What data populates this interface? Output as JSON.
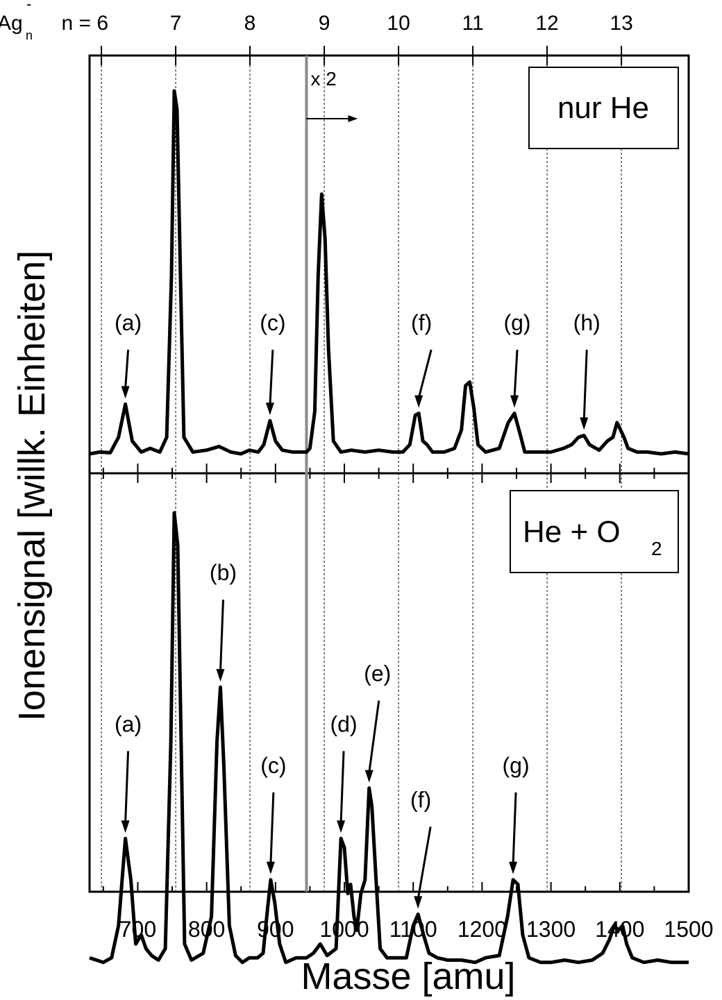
{
  "chart_data": {
    "type": "line",
    "xlabel": "Masse [amu]",
    "ylabel": "Ionensignal [willk. Einheiten]",
    "xlim": [
      630,
      1500
    ],
    "x_ticks": [
      "700",
      "800",
      "900",
      "1000",
      "1100",
      "1200",
      "1300",
      "1400",
      "1500"
    ],
    "y_ticks": [],
    "grid": false,
    "top_axis": {
      "prefix": "Ag",
      "prefix_subscript": "n",
      "prefix_superscript": "-",
      "label": "n = 6",
      "n_values": [
        6,
        7,
        8,
        9,
        10,
        11,
        12,
        13
      ],
      "n_labels": [
        "7",
        "8",
        "9",
        "10",
        "11",
        "12",
        "13"
      ],
      "masses": [
        647.2,
        755.1,
        862.9,
        970.8,
        1078.7,
        1186.6,
        1294.4,
        1402.3
      ]
    },
    "scale_change": {
      "x": 945,
      "label": "x 2",
      "direction": "right"
    },
    "panels": [
      {
        "id": "top",
        "legend": "nur He",
        "legend_subscript": "",
        "series": [
          {
            "points": [
              [
                630,
                0.015
              ],
              [
                645,
                0.02
              ],
              [
                660,
                0.018
              ],
              [
                672,
                0.06
              ],
              [
                682,
                0.15
              ],
              [
                692,
                0.05
              ],
              [
                705,
                0.02
              ],
              [
                718,
                0.03
              ],
              [
                732,
                0.02
              ],
              [
                742,
                0.06
              ],
              [
                749,
                0.5
              ],
              [
                753,
                1.0
              ],
              [
                757,
                0.95
              ],
              [
                762,
                0.5
              ],
              [
                767,
                0.06
              ],
              [
                780,
                0.02
              ],
              [
                800,
                0.025
              ],
              [
                818,
                0.035
              ],
              [
                835,
                0.02
              ],
              [
                850,
                0.015
              ],
              [
                862,
                0.025
              ],
              [
                875,
                0.02
              ],
              [
                883,
                0.04
              ],
              [
                892,
                0.105
              ],
              [
                900,
                0.05
              ],
              [
                910,
                0.025
              ],
              [
                925,
                0.02
              ],
              [
                945,
                0.02
              ],
              [
                950,
                0.03
              ],
              [
                957,
                0.13
              ],
              [
                962,
                0.5
              ],
              [
                967,
                0.72
              ],
              [
                972,
                0.6
              ],
              [
                977,
                0.3
              ],
              [
                984,
                0.05
              ],
              [
                995,
                0.02
              ],
              [
                1010,
                0.025
              ],
              [
                1030,
                0.02
              ],
              [
                1050,
                0.025
              ],
              [
                1070,
                0.02
              ],
              [
                1085,
                0.02
              ],
              [
                1095,
                0.04
              ],
              [
                1103,
                0.12
              ],
              [
                1108,
                0.125
              ],
              [
                1114,
                0.05
              ],
              [
                1120,
                0.04
              ],
              [
                1128,
                0.02
              ],
              [
                1145,
                0.02
              ],
              [
                1160,
                0.03
              ],
              [
                1170,
                0.08
              ],
              [
                1176,
                0.2
              ],
              [
                1182,
                0.21
              ],
              [
                1188,
                0.14
              ],
              [
                1194,
                0.04
              ],
              [
                1205,
                0.02
              ],
              [
                1225,
                0.03
              ],
              [
                1238,
                0.1
              ],
              [
                1247,
                0.125
              ],
              [
                1255,
                0.07
              ],
              [
                1262,
                0.02
              ],
              [
                1280,
                0.02
              ],
              [
                1300,
                0.02
              ],
              [
                1318,
                0.03
              ],
              [
                1330,
                0.04
              ],
              [
                1340,
                0.06
              ],
              [
                1348,
                0.065
              ],
              [
                1356,
                0.04
              ],
              [
                1370,
                0.025
              ],
              [
                1382,
                0.05
              ],
              [
                1390,
                0.06
              ],
              [
                1396,
                0.1
              ],
              [
                1401,
                0.08
              ],
              [
                1406,
                0.06
              ],
              [
                1412,
                0.03
              ],
              [
                1425,
                0.02
              ],
              [
                1440,
                0.02
              ],
              [
                1460,
                0.015
              ],
              [
                1480,
                0.02
              ],
              [
                1500,
                0.015
              ]
            ]
          }
        ],
        "annotations": [
          {
            "label": "(a)",
            "x": 682,
            "y": 0.15
          },
          {
            "label": "(c)",
            "x": 892,
            "y": 0.105
          },
          {
            "label": "(f)",
            "x": 1108,
            "y": 0.125
          },
          {
            "label": "(g)",
            "x": 1247,
            "y": 0.125
          },
          {
            "label": "(h)",
            "x": 1348,
            "y": 0.065
          }
        ]
      },
      {
        "id": "bottom",
        "legend": "He + O",
        "legend_subscript": "2",
        "series": [
          {
            "points": [
              [
                630,
                0.03
              ],
              [
                650,
                0.02
              ],
              [
                662,
                0.03
              ],
              [
                672,
                0.1
              ],
              [
                682,
                0.29
              ],
              [
                690,
                0.2
              ],
              [
                697,
                0.06
              ],
              [
                705,
                0.08
              ],
              [
                712,
                0.05
              ],
              [
                720,
                0.035
              ],
              [
                730,
                0.025
              ],
              [
                740,
                0.05
              ],
              [
                748,
                0.5
              ],
              [
                753,
                1.0
              ],
              [
                758,
                0.93
              ],
              [
                763,
                0.5
              ],
              [
                768,
                0.06
              ],
              [
                778,
                0.025
              ],
              [
                795,
                0.04
              ],
              [
                807,
                0.12
              ],
              [
                815,
                0.5
              ],
              [
                820,
                0.62
              ],
              [
                825,
                0.45
              ],
              [
                833,
                0.1
              ],
              [
                842,
                0.035
              ],
              [
                852,
                0.02
              ],
              [
                862,
                0.03
              ],
              [
                874,
                0.03
              ],
              [
                882,
                0.04
              ],
              [
                888,
                0.13
              ],
              [
                893,
                0.2
              ],
              [
                899,
                0.15
              ],
              [
                906,
                0.06
              ],
              [
                915,
                0.02
              ],
              [
                930,
                0.03
              ],
              [
                945,
                0.03
              ],
              [
                955,
                0.04
              ],
              [
                965,
                0.06
              ],
              [
                975,
                0.035
              ],
              [
                988,
                0.05
              ],
              [
                995,
                0.29
              ],
              [
                1000,
                0.27
              ],
              [
                1005,
                0.17
              ],
              [
                1009,
                0.19
              ],
              [
                1014,
                0.12
              ],
              [
                1018,
                0.09
              ],
              [
                1024,
                0.17
              ],
              [
                1030,
                0.2
              ],
              [
                1036,
                0.4
              ],
              [
                1040,
                0.36
              ],
              [
                1046,
                0.2
              ],
              [
                1052,
                0.05
              ],
              [
                1062,
                0.03
              ],
              [
                1075,
                0.03
              ],
              [
                1090,
                0.03
              ],
              [
                1100,
                0.1
              ],
              [
                1107,
                0.125
              ],
              [
                1115,
                0.08
              ],
              [
                1123,
                0.04
              ],
              [
                1135,
                0.03
              ],
              [
                1150,
                0.025
              ],
              [
                1170,
                0.025
              ],
              [
                1190,
                0.02
              ],
              [
                1205,
                0.03
              ],
              [
                1225,
                0.035
              ],
              [
                1237,
                0.12
              ],
              [
                1245,
                0.2
              ],
              [
                1252,
                0.19
              ],
              [
                1259,
                0.08
              ],
              [
                1268,
                0.03
              ],
              [
                1285,
                0.02
              ],
              [
                1300,
                0.02
              ],
              [
                1320,
                0.025
              ],
              [
                1340,
                0.02
              ],
              [
                1360,
                0.025
              ],
              [
                1375,
                0.04
              ],
              [
                1385,
                0.07
              ],
              [
                1392,
                0.1
              ],
              [
                1398,
                0.09
              ],
              [
                1404,
                0.1
              ],
              [
                1410,
                0.06
              ],
              [
                1418,
                0.03
              ],
              [
                1435,
                0.02
              ],
              [
                1455,
                0.025
              ],
              [
                1475,
                0.02
              ],
              [
                1500,
                0.02
              ]
            ]
          }
        ],
        "annotations": [
          {
            "label": "(a)",
            "x": 682,
            "y": 0.29
          },
          {
            "label": "(b)",
            "x": 820,
            "y": 0.62
          },
          {
            "label": "(c)",
            "x": 893,
            "y": 0.2
          },
          {
            "label": "(d)",
            "x": 995,
            "y": 0.29
          },
          {
            "label": "(e)",
            "x": 1036,
            "y": 0.4
          },
          {
            "label": "(f)",
            "x": 1107,
            "y": 0.125
          },
          {
            "label": "(g)",
            "x": 1245,
            "y": 0.2
          }
        ]
      }
    ]
  }
}
